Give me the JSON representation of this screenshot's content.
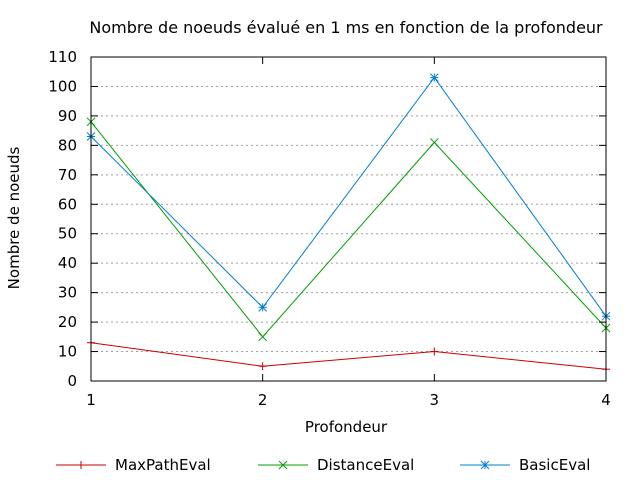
{
  "chart_data": {
    "type": "line",
    "title": "Nombre de noeuds évalué en 1 ms en fonction de la profondeur",
    "xlabel": "Profondeur",
    "ylabel": "Nombre de noeuds",
    "x": [
      1,
      2,
      3,
      4
    ],
    "xlim": [
      1,
      4
    ],
    "ylim": [
      0,
      110
    ],
    "yticks": [
      0,
      10,
      20,
      30,
      40,
      50,
      60,
      70,
      80,
      90,
      100,
      110
    ],
    "xticks": [
      1,
      2,
      3,
      4
    ],
    "grid": "horizontal dotted",
    "legend_position": "bottom",
    "series": [
      {
        "name": "MaxPathEval",
        "values": [
          13,
          5,
          10,
          4
        ],
        "color": "#cc0000",
        "marker": "plus"
      },
      {
        "name": "DistanceEval",
        "values": [
          88,
          15,
          81,
          18
        ],
        "color": "#00a000",
        "marker": "cross"
      },
      {
        "name": "BasicEval",
        "values": [
          83,
          25,
          103,
          22
        ],
        "color": "#0080cc",
        "marker": "star"
      }
    ]
  }
}
